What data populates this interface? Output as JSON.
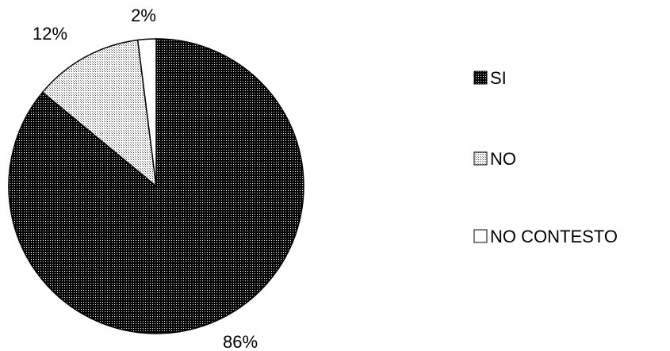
{
  "chart_data": {
    "type": "pie",
    "title": "",
    "categories": [
      "SI",
      "NO",
      "NO CONTESTO"
    ],
    "values": [
      86,
      12,
      2
    ],
    "value_labels": [
      "86%",
      "12%",
      "2%"
    ],
    "unit": "%",
    "start": "12 o'clock, clockwise",
    "legend": {
      "position": "right",
      "items": [
        "SI",
        "NO",
        "NO CONTESTO"
      ]
    },
    "fills": [
      {
        "pattern": "dense-dots",
        "base": "#000000",
        "dot": "#ffffff"
      },
      {
        "pattern": "sparse-grid",
        "base": "#ffffff",
        "dot": "#555555"
      },
      {
        "pattern": "solid",
        "base": "#ffffff"
      }
    ],
    "outline_color": "#000000"
  }
}
